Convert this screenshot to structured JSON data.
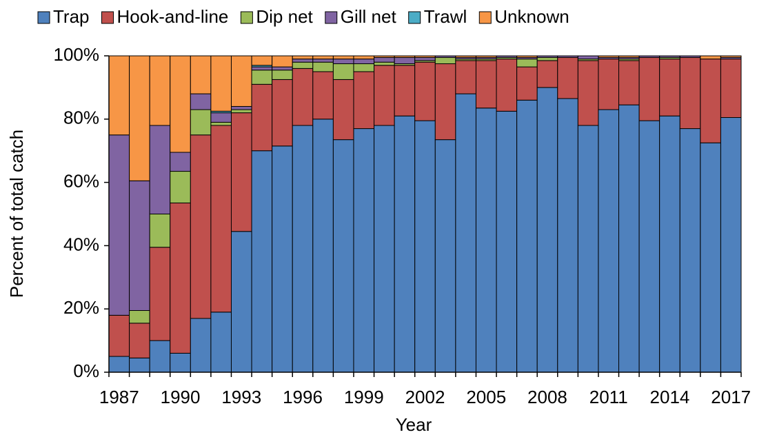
{
  "chart_data": {
    "type": "stacked-bar",
    "x_label": "Year",
    "y_label": "Percent of total catch",
    "categories": [
      "1987",
      null,
      null,
      "1990",
      null,
      null,
      "1993",
      null,
      null,
      "1996",
      null,
      null,
      "1999",
      null,
      null,
      "2002",
      null,
      null,
      "2005",
      null,
      null,
      "2008",
      null,
      null,
      "2011",
      null,
      null,
      "2014",
      null,
      null,
      "2017"
    ],
    "series": [
      {
        "name": "Trap",
        "color": "#4f81bd",
        "values": [
          5,
          4.5,
          10,
          6,
          17,
          19,
          44.5,
          70,
          71.5,
          78,
          80,
          73.5,
          77,
          78,
          81,
          79.5,
          73.5,
          88,
          83.5,
          82.5,
          86,
          90,
          86.5,
          78,
          83,
          84.5,
          79.5,
          81,
          77,
          72.5,
          80.5
        ]
      },
      {
        "name": "Hook-and-line",
        "color": "#c0504d",
        "values": [
          13,
          11,
          29.5,
          47.5,
          58,
          59,
          37.5,
          21,
          21,
          18,
          15,
          19,
          18,
          19,
          16,
          18.5,
          24,
          10.5,
          15,
          16.5,
          10.5,
          8.5,
          13,
          20.5,
          16,
          14,
          20,
          18,
          22.5,
          26.5,
          18.5
        ]
      },
      {
        "name": "Dip net",
        "color": "#9bbb59",
        "values": [
          0,
          4,
          10.5,
          10,
          8,
          1,
          1,
          4.5,
          3,
          2,
          3,
          5,
          2.5,
          1,
          0.5,
          0.5,
          2,
          0.5,
          0.5,
          0.5,
          2.5,
          1,
          0,
          0.5,
          0,
          0.5,
          0,
          0.5,
          0,
          0,
          0
        ]
      },
      {
        "name": "Gill net",
        "color": "#8064a2",
        "values": [
          57,
          41,
          28,
          6,
          5,
          3,
          1,
          1,
          1,
          1,
          1,
          1.5,
          1.5,
          1.5,
          2,
          1,
          0.5,
          0.5,
          0.5,
          0.5,
          0.5,
          0.5,
          0.5,
          1,
          0.5,
          0.5,
          0.5,
          0.5,
          0.5,
          0,
          0.5
        ]
      },
      {
        "name": "Trawl",
        "color": "#4bacc6",
        "values": [
          0,
          0,
          0,
          0,
          0,
          0.5,
          0,
          0.5,
          0,
          0,
          0,
          0,
          0,
          0,
          0,
          0,
          0,
          0,
          0,
          0,
          0,
          0,
          0,
          0,
          0,
          0,
          0,
          0,
          0,
          0,
          0
        ]
      },
      {
        "name": "Unknown",
        "color": "#f79646",
        "values": [
          25,
          39.5,
          22,
          30.5,
          12,
          17.5,
          16,
          3,
          3.5,
          1,
          1,
          1,
          1,
          0.5,
          0.5,
          0.5,
          0,
          0.5,
          0.5,
          0,
          0.5,
          0,
          0,
          0,
          0.5,
          0.5,
          0,
          0,
          0,
          1,
          0.5
        ]
      }
    ],
    "ylim": [
      0,
      100
    ],
    "yticks": [
      {
        "value": 0,
        "label": "0%"
      },
      {
        "value": 20,
        "label": "20%"
      },
      {
        "value": 40,
        "label": "40%"
      },
      {
        "value": 60,
        "label": "60%"
      },
      {
        "value": 80,
        "label": "80%"
      },
      {
        "value": 100,
        "label": "100%"
      }
    ],
    "legend_position": "top"
  }
}
